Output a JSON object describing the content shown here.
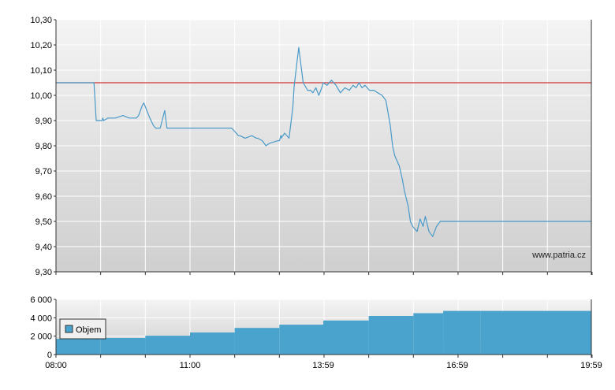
{
  "watermark": "www.patria.cz",
  "colors": {
    "price_line": "#4a9ac8",
    "reference_line": "#cc3333",
    "volume_fill": "#4aa3cc",
    "plot_bg_top": "#f4f4f4",
    "plot_bg_bottom": "#cfcfcf",
    "grid": "#ffffff"
  },
  "chart_data": [
    {
      "type": "line",
      "title": "",
      "xlabel": "",
      "ylabel": "",
      "ylim": [
        9.3,
        10.3
      ],
      "y_ticks": [
        "10,30",
        "10,20",
        "10,10",
        "10,00",
        "9,90",
        "9,80",
        "9,70",
        "9,60",
        "9,50",
        "9,40",
        "9,30"
      ],
      "x_range": [
        "08:00",
        "19:59"
      ],
      "grid": true,
      "reference_line": {
        "value": 10.05
      },
      "series": [
        {
          "x": [
            "08:00",
            "08:51",
            "08:54",
            "09:02",
            "09:03",
            "09:04",
            "09:10",
            "09:20",
            "09:30",
            "09:38",
            "09:45",
            "09:48",
            "09:51",
            "09:56",
            "09:58",
            "10:06",
            "10:11",
            "10:14",
            "10:20",
            "10:26",
            "10:29",
            "10:30",
            "10:37",
            "10:45",
            "11:00",
            "11:15",
            "11:26",
            "11:37",
            "11:42",
            "11:48",
            "11:56",
            "12:05",
            "12:07",
            "12:14",
            "12:23",
            "12:29",
            "12:31",
            "12:37",
            "12:42",
            "12:47",
            "12:58",
            "13:00",
            "13:01",
            "13:02",
            "13:03",
            "13:04",
            "13:05",
            "13:07",
            "13:13",
            "13:18",
            "13:20",
            "13:26",
            "13:32",
            "13:38",
            "13:42",
            "13:45",
            "13:49",
            "13:53",
            "13:57",
            "13:59",
            "14:04",
            "14:10",
            "14:16",
            "14:22",
            "14:28",
            "14:34",
            "14:39",
            "14:43",
            "14:47",
            "14:51",
            "14:55",
            "15:01",
            "15:07",
            "15:12",
            "15:18",
            "15:23",
            "15:26",
            "15:29",
            "15:32",
            "15:35",
            "15:41",
            "15:45",
            "15:48",
            "15:53",
            "15:56",
            "15:59",
            "16:05",
            "16:09",
            "16:13",
            "16:16",
            "16:21",
            "16:26",
            "16:31",
            "16:36",
            "16:39",
            "16:43",
            "16:48",
            "16:51",
            "16:56",
            "16:59",
            "17:04",
            "17:11",
            "17:59",
            "18:59",
            "19:59"
          ],
          "values": [
            10.05,
            10.05,
            9.9,
            9.9,
            9.91,
            9.9,
            9.91,
            9.91,
            9.92,
            9.91,
            9.91,
            9.91,
            9.92,
            9.96,
            9.97,
            9.91,
            9.88,
            9.87,
            9.87,
            9.94,
            9.87,
            9.87,
            9.87,
            9.87,
            9.87,
            9.87,
            9.87,
            9.87,
            9.87,
            9.87,
            9.87,
            9.84,
            9.84,
            9.83,
            9.84,
            9.83,
            9.83,
            9.82,
            9.8,
            9.81,
            9.82,
            9.82,
            9.83,
            9.84,
            9.83,
            9.84,
            9.84,
            9.85,
            9.83,
            9.95,
            10.04,
            10.19,
            10.05,
            10.02,
            10.02,
            10.01,
            10.03,
            10.0,
            10.03,
            10.05,
            10.04,
            10.06,
            10.04,
            10.01,
            10.03,
            10.02,
            10.04,
            10.03,
            10.05,
            10.03,
            10.04,
            10.02,
            10.02,
            10.01,
            10.0,
            9.98,
            9.93,
            9.88,
            9.8,
            9.76,
            9.72,
            9.67,
            9.62,
            9.56,
            9.5,
            9.48,
            9.46,
            9.51,
            9.48,
            9.52,
            9.46,
            9.44,
            9.48,
            9.5,
            9.5,
            9.5,
            9.5,
            9.5,
            9.5,
            9.5,
            9.5,
            9.5,
            9.5,
            9.5,
            9.5
          ]
        }
      ]
    },
    {
      "type": "bar",
      "title": "",
      "xlabel": "",
      "ylabel": "",
      "ylim": [
        0,
        6000
      ],
      "y_ticks": [
        "6 000",
        "4 000",
        "2 000",
        "0"
      ],
      "x_tick_labels": [
        "08:00",
        "11:00",
        "13:59",
        "16:59",
        "19:59"
      ],
      "legend": {
        "label": "Objem",
        "placement": "left"
      },
      "grid": true,
      "series": [
        {
          "name": "Objem",
          "x": [
            "08:00",
            "09:00",
            "10:00",
            "11:00",
            "12:00",
            "13:00",
            "13:59",
            "15:00",
            "16:00",
            "16:40",
            "17:30",
            "18:30",
            "19:59"
          ],
          "values": [
            1700,
            1800,
            2050,
            2400,
            2900,
            3250,
            3700,
            4200,
            4500,
            4750,
            4750,
            4750,
            4750
          ]
        }
      ]
    }
  ]
}
